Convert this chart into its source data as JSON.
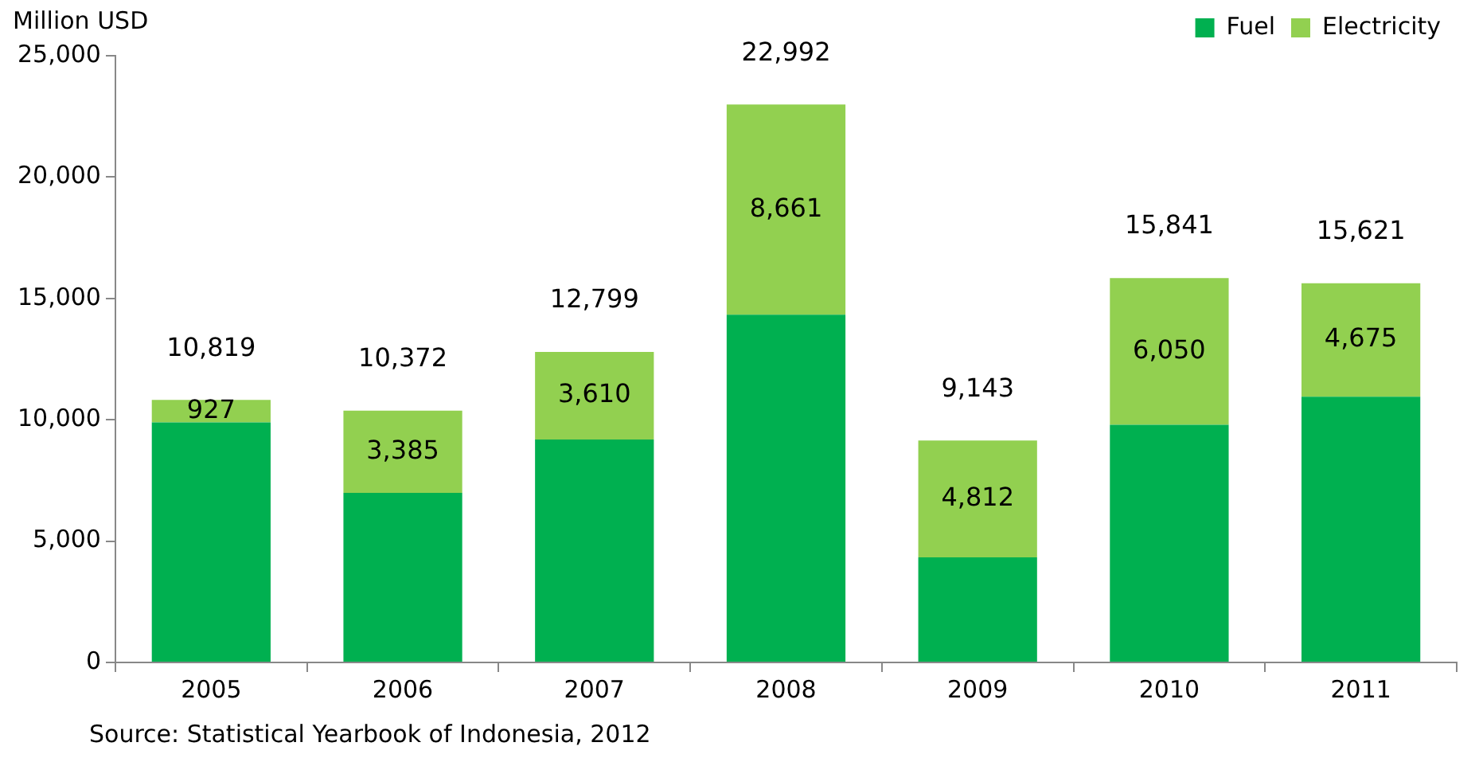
{
  "chart_data": {
    "type": "bar",
    "stacked": true,
    "ylabel": "Million USD",
    "categories": [
      "2005",
      "2006",
      "2007",
      "2008",
      "2009",
      "2010",
      "2011"
    ],
    "series": [
      {
        "name": "Fuel",
        "color": "#00b050",
        "values": [
          9892,
          6987,
          9189,
          14331,
          4331,
          9791,
          10946
        ]
      },
      {
        "name": "Electricity",
        "color": "#92d050",
        "values": [
          927,
          3385,
          3610,
          8661,
          4812,
          6050,
          4675
        ],
        "value_labels": [
          "927",
          "3,385",
          "3,610",
          "8,661",
          "4,812",
          "6,050",
          "4,675"
        ]
      }
    ],
    "totals": [
      "10,819",
      "10,372",
      "12,799",
      "22,992",
      "9,143",
      "15,841",
      "15,621"
    ],
    "ylim": [
      0,
      25000
    ],
    "yticks": [
      {
        "value": 0,
        "label": "0"
      },
      {
        "value": 5000,
        "label": "5,000"
      },
      {
        "value": 10000,
        "label": "10,000"
      },
      {
        "value": 15000,
        "label": "15,000"
      },
      {
        "value": 20000,
        "label": "20,000"
      },
      {
        "value": 25000,
        "label": "25,000"
      }
    ],
    "grid": false,
    "legend": "top right",
    "annotations": [
      "Source: Statistical Yearbook of Indonesia, 2012"
    ]
  }
}
